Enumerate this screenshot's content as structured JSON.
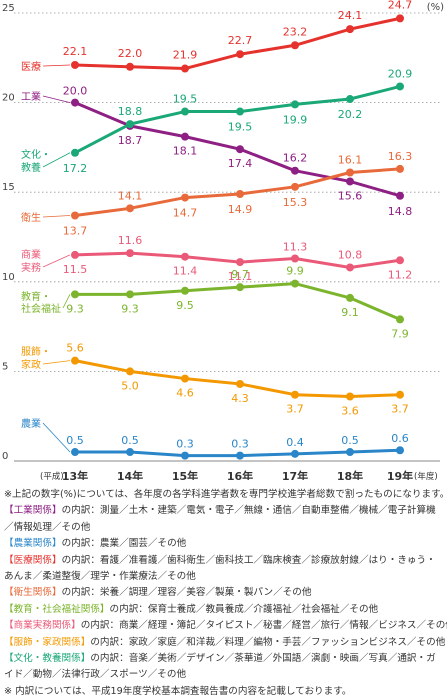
{
  "chart_data": {
    "type": "line",
    "y_unit": "(%)",
    "x_prefix": "(平成)",
    "x_suffix": "(年度)",
    "categories": [
      "13年",
      "14年",
      "15年",
      "16年",
      "17年",
      "18年",
      "19年"
    ],
    "ylim": [
      0,
      25
    ],
    "yticks": [
      "0",
      "5",
      "10",
      "15",
      "20",
      "25"
    ],
    "grid": "horizontal-dotted",
    "series": [
      {
        "name": "医療",
        "color": "#e5322d",
        "values": [
          22.1,
          22.0,
          21.9,
          22.7,
          23.2,
          24.1,
          24.7
        ],
        "labels": [
          "22.1",
          "22.0",
          "21.9",
          "22.7",
          "23.2",
          "24.1",
          "24.7"
        ]
      },
      {
        "name": "工業",
        "color": "#8e1f83",
        "values": [
          20.0,
          18.7,
          18.1,
          17.4,
          16.2,
          15.6,
          14.8
        ],
        "labels": [
          "20.0",
          "18.7",
          "18.1",
          "17.4",
          "16.2",
          "15.6",
          "14.8"
        ]
      },
      {
        "name": "文化・教養",
        "color": "#1aa877",
        "values": [
          17.2,
          18.8,
          19.5,
          19.5,
          19.9,
          20.2,
          20.9
        ],
        "labels": [
          "17.2",
          "18.8",
          "19.5",
          "19.5",
          "19.9",
          "20.2",
          "20.9"
        ]
      },
      {
        "name": "衛生",
        "color": "#e86a3a",
        "values": [
          13.7,
          14.1,
          14.7,
          14.9,
          15.3,
          16.1,
          16.3
        ],
        "labels": [
          "13.7",
          "14.1",
          "14.7",
          "14.9",
          "15.3",
          "16.1",
          "16.3"
        ]
      },
      {
        "name": "商業実務",
        "color": "#ea5a78",
        "values": [
          11.5,
          11.6,
          11.4,
          11.1,
          11.3,
          10.8,
          11.2
        ],
        "labels": [
          "11.5",
          "11.6",
          "11.4",
          "11.1",
          "11.3",
          "10.8",
          "11.2"
        ]
      },
      {
        "name": "教育・社会福祉",
        "color": "#7cb52d",
        "values": [
          9.3,
          9.3,
          9.5,
          9.7,
          9.9,
          9.1,
          7.9
        ],
        "labels": [
          "9.3",
          "9.3",
          "9.5",
          "9.7",
          "9.9",
          "9.1",
          "7.9"
        ]
      },
      {
        "name": "服飾・家政",
        "color": "#f39800",
        "values": [
          5.6,
          5.0,
          4.6,
          4.3,
          3.7,
          3.6,
          3.7
        ],
        "labels": [
          "5.6",
          "5.0",
          "4.6",
          "4.3",
          "3.7",
          "3.6",
          "3.7"
        ]
      },
      {
        "name": "農業",
        "color": "#2a86c8",
        "values": [
          0.5,
          0.5,
          0.3,
          0.3,
          0.4,
          0.5,
          0.6
        ],
        "labels": [
          "0.5",
          "0.5",
          "0.3",
          "0.3",
          "0.4",
          "0.5",
          "0.6"
        ]
      }
    ]
  },
  "notes": {
    "footnote_top": "※上記の数字(%)については、各年度の各学科進学者数を専門学校進学者総数で割ったものになります。",
    "breakdown": [
      {
        "cat": "【工業関係】",
        "color": "#8e1f83",
        "lines": [
          "の内訳：測量／土木・建築／電気・電子／無線・通信／自動車整備／機械／電子計算機",
          "／情報処理／その他"
        ]
      },
      {
        "cat": "【農業関係】",
        "color": "#2a86c8",
        "lines": [
          "の内訳：農業／園芸／その他"
        ]
      },
      {
        "cat": "【医療関係】",
        "color": "#e5322d",
        "lines": [
          "の内訳：看護／准看護／歯科衛生／歯科技工／臨床検査／診療放射線／はり・きゅう・",
          "あんま／柔道整復／理学・作業療法／その他"
        ]
      },
      {
        "cat": "【衛生関係】",
        "color": "#e86a3a",
        "lines": [
          "の内訳：栄養／調理／理容／美容／製菓・製パン／その他"
        ]
      },
      {
        "cat": "【教育・社会福祉関係】",
        "color": "#7cb52d",
        "lines": [
          "の内訳：保育士養成／教員養成／介護福祉／社会福祉／その他"
        ]
      },
      {
        "cat": "【商業実務関係】",
        "color": "#ea5a78",
        "lines": [
          "の内訳：商業／経理・簿記／タイピスト／秘書／経営／旅行／情報／ビジネス／その他"
        ]
      },
      {
        "cat": "【服飾・家政関係】",
        "color": "#f39800",
        "lines": [
          "の内訳：家政／家庭／和洋裁／料理／編物・手芸／ファッションビジネス／その他"
        ]
      },
      {
        "cat": "【文化・教養関係】",
        "color": "#1aa877",
        "lines": [
          "の内訳：音楽／美術／デザイン／茶華道／外国語／演劇・映画／写真／通訳・ガ",
          "イド／動物／法律行政／スポーツ／その他"
        ]
      }
    ],
    "footnote_bottom": "※ 内訳については、平成19年度学校基本調査報告書の内容を記載しております。"
  }
}
